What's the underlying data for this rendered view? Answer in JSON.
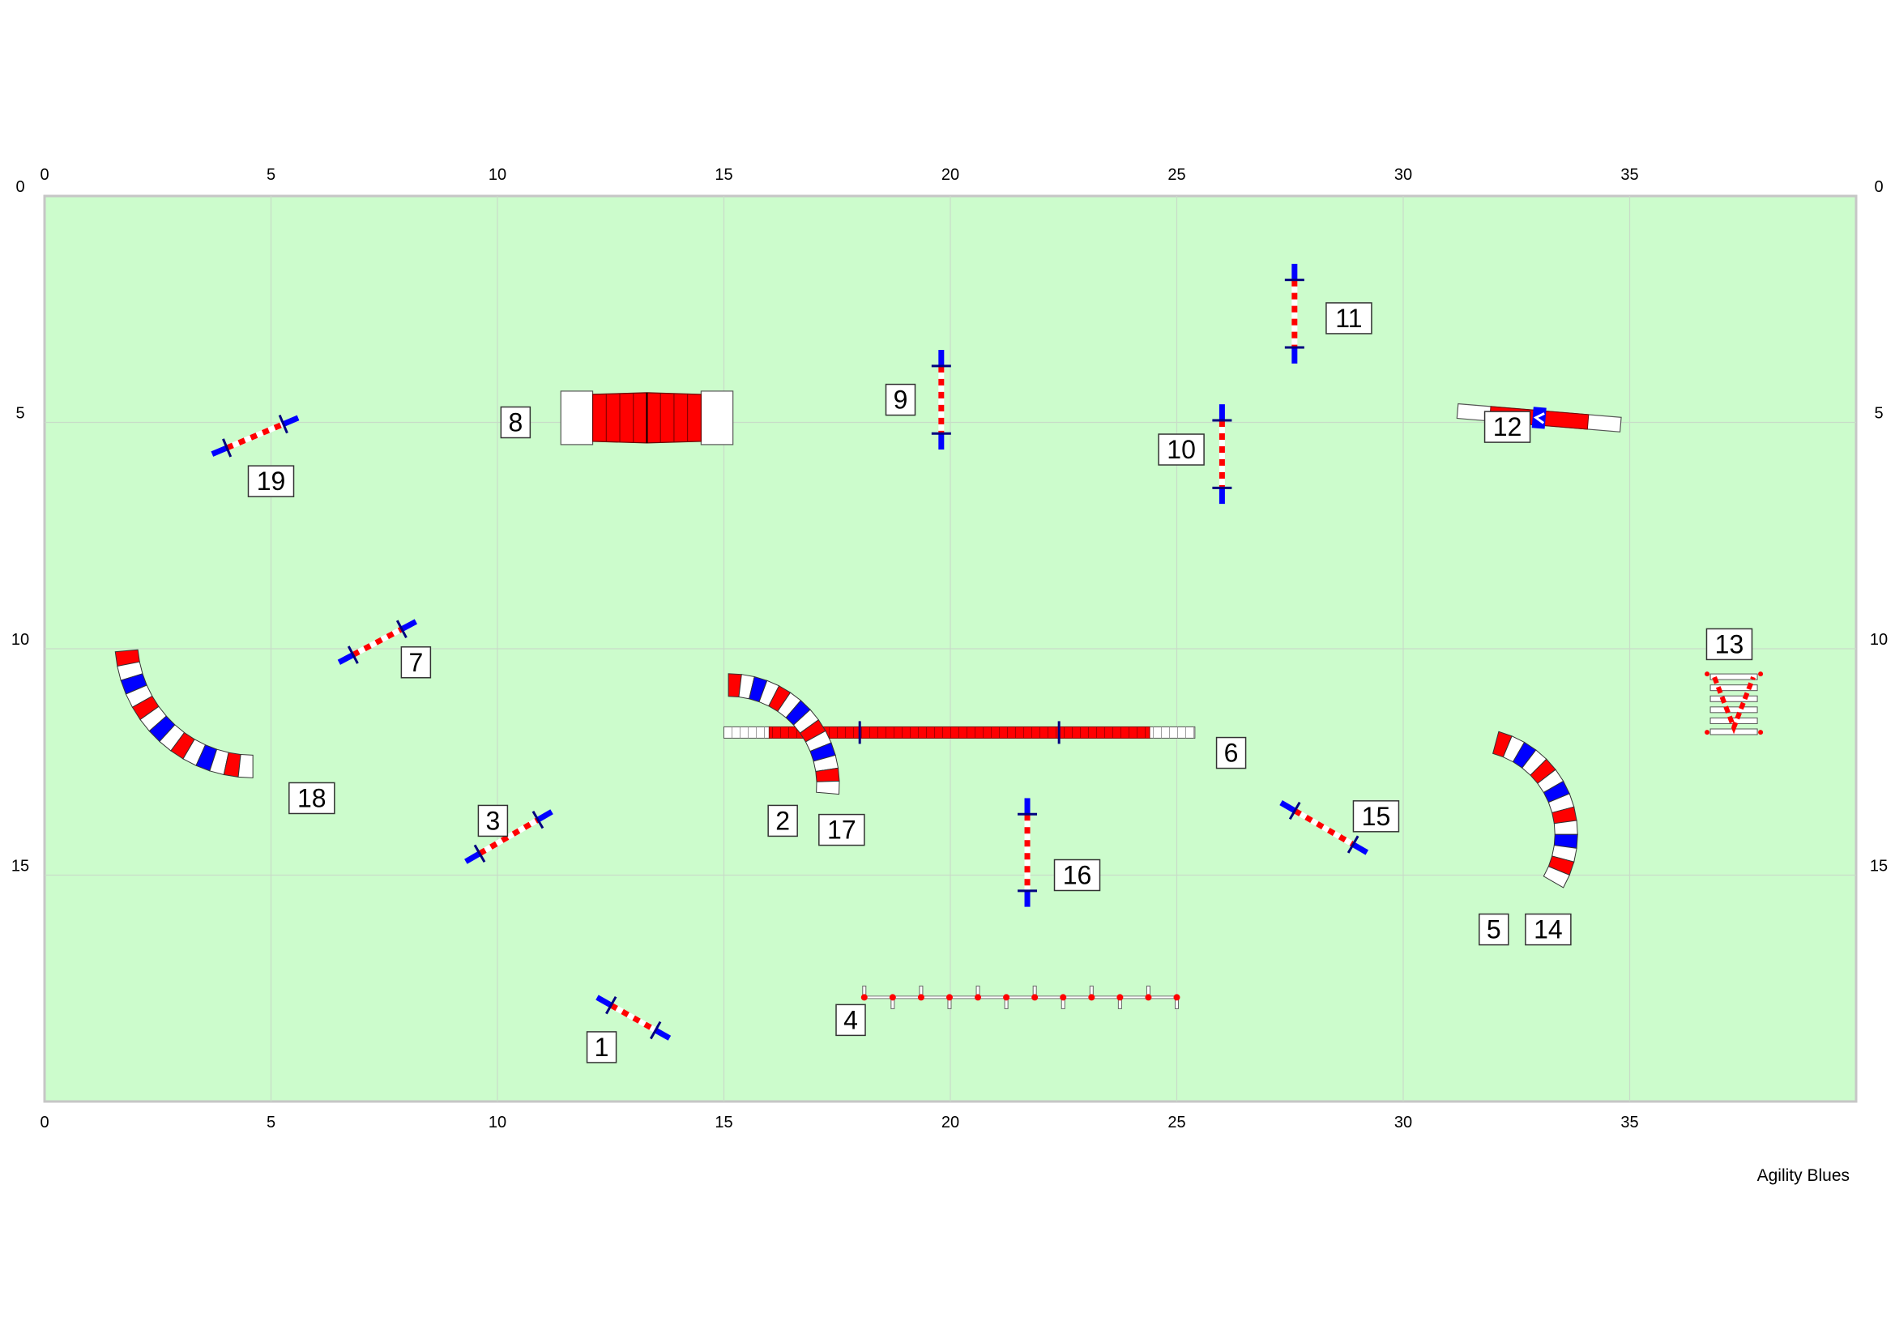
{
  "title": "",
  "credit": "Agility Blues",
  "colors": {
    "field": "#ccfccc",
    "border": "#c6c6c6",
    "grid": "#c8dcc8",
    "red": "#ff0000",
    "blue": "#0000ff",
    "white": "#ffffff"
  },
  "axes": {
    "x_ticks": [
      "0",
      "5",
      "10",
      "15",
      "20",
      "25",
      "30",
      "35"
    ],
    "y_ticks": [
      "0",
      "5",
      "10",
      "15"
    ],
    "x_range": [
      0,
      40
    ],
    "y_range": [
      0,
      20
    ]
  },
  "obstacles": [
    {
      "kind": "jump",
      "label": "1",
      "x1": 12.2,
      "y1": 17.7,
      "x2": 13.8,
      "y2": 18.6
    },
    {
      "kind": "jump",
      "label": "3",
      "x1": 9.3,
      "y1": 14.7,
      "x2": 11.2,
      "y2": 13.6
    },
    {
      "kind": "jump",
      "label": "7",
      "x1": 6.5,
      "y1": 10.3,
      "x2": 8.2,
      "y2": 9.4
    },
    {
      "kind": "jump",
      "label": "19",
      "x1": 3.7,
      "y1": 5.7,
      "x2": 5.6,
      "y2": 4.9
    },
    {
      "kind": "jump",
      "label": "9",
      "x1": 19.8,
      "y1": 3.4,
      "x2": 19.8,
      "y2": 5.6
    },
    {
      "kind": "jump",
      "label": "10",
      "x1": 26.0,
      "y1": 4.6,
      "x2": 26.0,
      "y2": 6.8
    },
    {
      "kind": "jump",
      "label": "11",
      "x1": 27.6,
      "y1": 1.5,
      "x2": 27.6,
      "y2": 3.7
    },
    {
      "kind": "jump",
      "label": "15",
      "x1": 27.3,
      "y1": 13.4,
      "x2": 29.2,
      "y2": 14.5
    },
    {
      "kind": "jump",
      "label": "16",
      "x1": 21.7,
      "y1": 13.3,
      "x2": 21.7,
      "y2": 15.7
    },
    {
      "kind": "dogwalk",
      "label": "6",
      "x1": 15.0,
      "y1": 11.85,
      "x2": 25.4,
      "y2": 11.85
    },
    {
      "kind": "aframe",
      "label": "8",
      "x1": 11.4,
      "y1": 4.9,
      "x2": 15.2,
      "y2": 4.9
    },
    {
      "kind": "seesaw",
      "label": "12",
      "x1": 31.2,
      "y1": 4.75,
      "x2": 34.8,
      "y2": 5.05
    },
    {
      "kind": "weave",
      "label": "4",
      "x1": 18.1,
      "y1": 17.7,
      "x2": 25.0,
      "y2": 17.7
    },
    {
      "kind": "tire",
      "label": "13",
      "x": 37.3,
      "y": 11.2
    },
    {
      "kind": "tunnel",
      "label": "18",
      "cx": 4.6,
      "cy": 9.8,
      "r": 2.8,
      "a1": 175,
      "a2": 90
    },
    {
      "kind": "tunnel",
      "label": "2 / 17",
      "cx": 15.1,
      "cy": 13.0,
      "r": 2.2,
      "a1": 270,
      "a2": 365
    },
    {
      "kind": "tunnel",
      "label": "5 / 14",
      "cx": 31.5,
      "cy": 14.1,
      "r": 2.1,
      "a1": -75,
      "a2": 30
    }
  ],
  "numbers": [
    {
      "text": "1",
      "x": 12.3,
      "y": 18.8
    },
    {
      "text": "2",
      "x": 16.3,
      "y": 13.8
    },
    {
      "text": "3",
      "x": 9.9,
      "y": 13.8
    },
    {
      "text": "4",
      "x": 17.8,
      "y": 18.2
    },
    {
      "text": "5",
      "x": 32.0,
      "y": 16.2
    },
    {
      "text": "6",
      "x": 26.2,
      "y": 12.3
    },
    {
      "text": "7",
      "x": 8.2,
      "y": 10.3
    },
    {
      "text": "8",
      "x": 10.4,
      "y": 5.0
    },
    {
      "text": "9",
      "x": 18.9,
      "y": 4.5
    },
    {
      "text": "10",
      "x": 25.1,
      "y": 5.6
    },
    {
      "text": "11",
      "x": 28.8,
      "y": 2.7
    },
    {
      "text": "12",
      "x": 32.3,
      "y": 5.1
    },
    {
      "text": "13",
      "x": 37.2,
      "y": 9.9
    },
    {
      "text": "14",
      "x": 33.2,
      "y": 16.2
    },
    {
      "text": "15",
      "x": 29.4,
      "y": 13.7
    },
    {
      "text": "16",
      "x": 22.8,
      "y": 15.0
    },
    {
      "text": "17",
      "x": 17.6,
      "y": 14.0
    },
    {
      "text": "18",
      "x": 5.9,
      "y": 13.3
    },
    {
      "text": "19",
      "x": 5.0,
      "y": 6.3
    }
  ]
}
